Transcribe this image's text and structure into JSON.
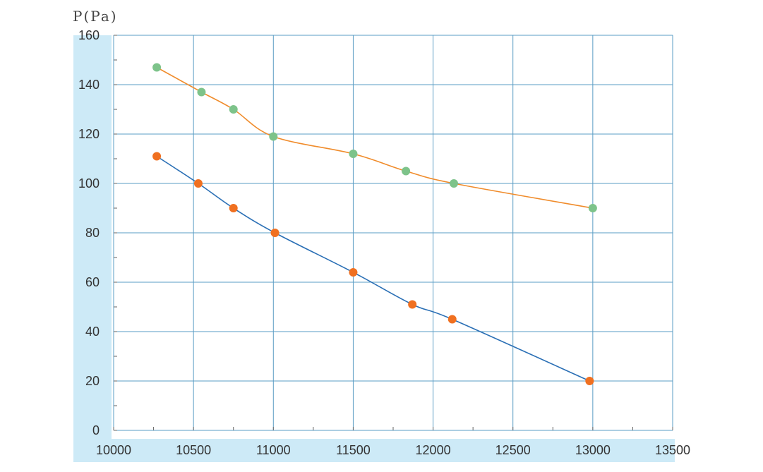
{
  "chart_data": {
    "type": "scatter",
    "title": "",
    "xlabel": "",
    "ylabel": "P(Pa)",
    "xlim": [
      10000,
      13500
    ],
    "ylim": [
      0,
      160
    ],
    "x_ticks": [
      10000,
      10500,
      11000,
      11500,
      12000,
      12500,
      13000,
      13500
    ],
    "y_ticks": [
      0,
      20,
      40,
      60,
      80,
      100,
      120,
      140,
      160
    ],
    "grid": true,
    "legend": "none",
    "series": [
      {
        "marker_color": "#7dc38a",
        "line_color": "#f08c2c",
        "points": [
          {
            "x": 10270,
            "y": 147
          },
          {
            "x": 10550,
            "y": 137
          },
          {
            "x": 10750,
            "y": 130
          },
          {
            "x": 11000,
            "y": 119
          },
          {
            "x": 11500,
            "y": 112
          },
          {
            "x": 11830,
            "y": 105
          },
          {
            "x": 12130,
            "y": 100
          },
          {
            "x": 13000,
            "y": 90
          }
        ]
      },
      {
        "marker_color": "#f07020",
        "line_color": "#2a6fb5",
        "points": [
          {
            "x": 10270,
            "y": 111
          },
          {
            "x": 10530,
            "y": 100
          },
          {
            "x": 10750,
            "y": 90
          },
          {
            "x": 11010,
            "y": 80
          },
          {
            "x": 11500,
            "y": 64
          },
          {
            "x": 11870,
            "y": 51
          },
          {
            "x": 12120,
            "y": 45
          },
          {
            "x": 12980,
            "y": 20
          }
        ]
      }
    ]
  },
  "colors": {
    "axis_band": "#cdeaf7",
    "grid": "#5a9cc4",
    "plot_bg": "#ffffff"
  }
}
